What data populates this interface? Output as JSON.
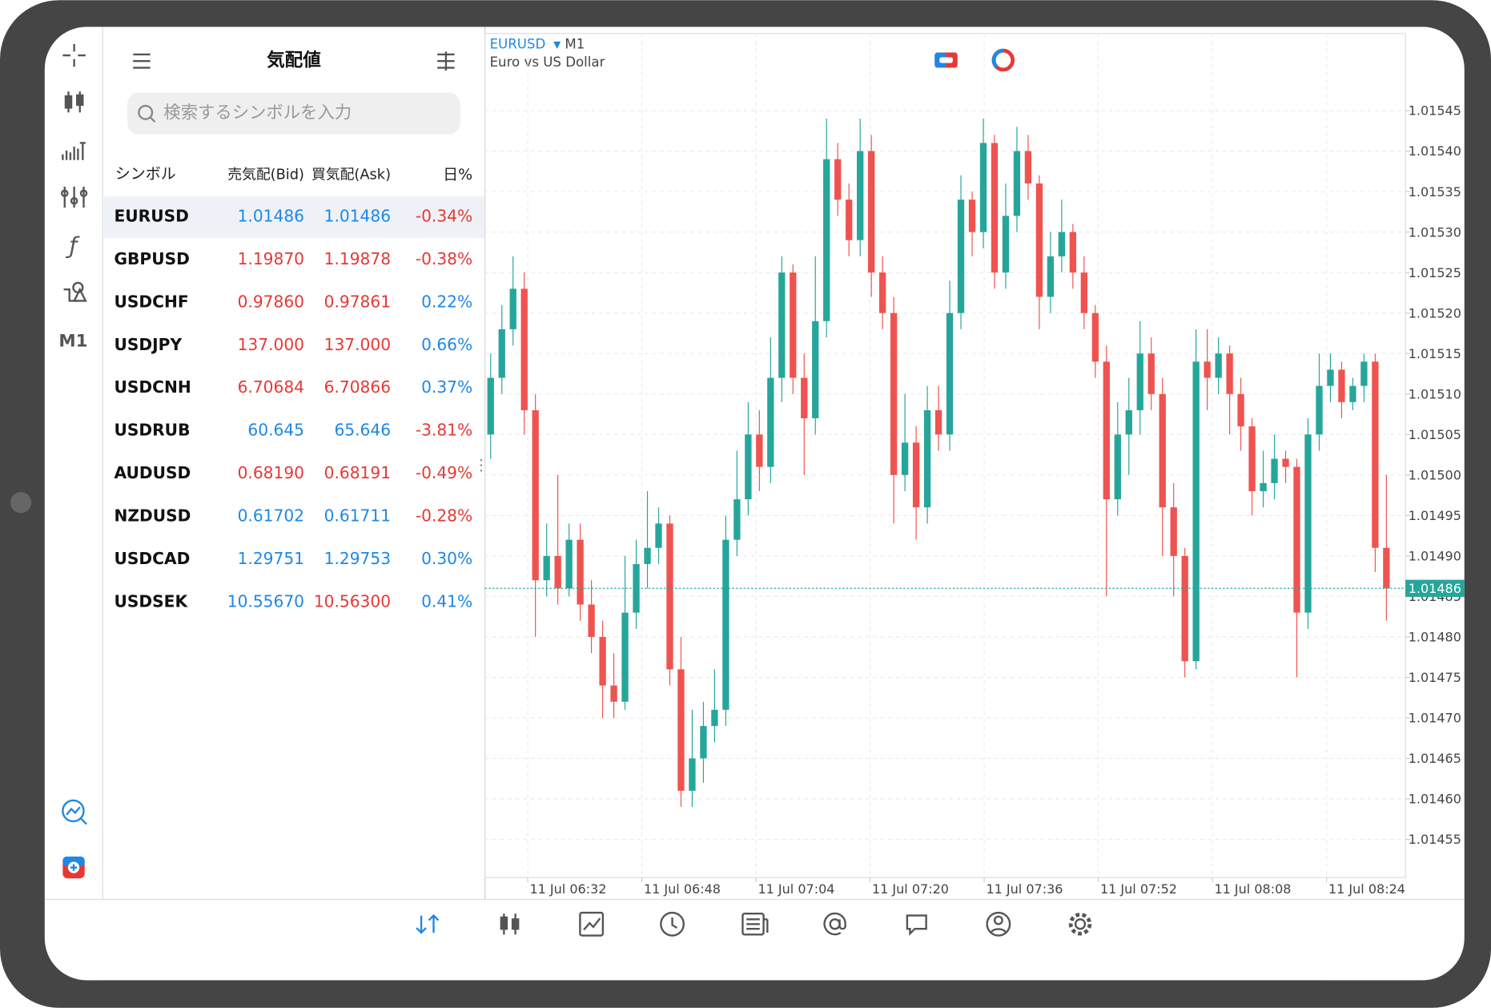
{
  "quotes": {
    "title": "気配値",
    "search_placeholder": "検索するシンボルを入力",
    "columns": [
      "シンボル",
      "売気配(Bid)",
      "買気配(Ask)",
      "日%"
    ],
    "rows": [
      {
        "symbol": "EURUSD",
        "bid": "1.01486",
        "ask": "1.01486",
        "change": "-0.34%",
        "bid_color": "#1e88e5",
        "ask_color": "#1e88e5",
        "change_color": "#e53935"
      },
      {
        "symbol": "GBPUSD",
        "bid": "1.19870",
        "ask": "1.19878",
        "change": "-0.38%",
        "bid_color": "#e53935",
        "ask_color": "#e53935",
        "change_color": "#e53935"
      },
      {
        "symbol": "USDCHF",
        "bid": "0.97860",
        "ask": "0.97861",
        "change": "0.22%",
        "bid_color": "#e53935",
        "ask_color": "#e53935",
        "change_color": "#1e88e5"
      },
      {
        "symbol": "USDJPY",
        "bid": "137.000",
        "ask": "137.000",
        "change": "0.66%",
        "bid_color": "#e53935",
        "ask_color": "#e53935",
        "change_color": "#1e88e5"
      },
      {
        "symbol": "USDCNH",
        "bid": "6.70684",
        "ask": "6.70866",
        "change": "0.37%",
        "bid_color": "#e53935",
        "ask_color": "#e53935",
        "change_color": "#1e88e5"
      },
      {
        "symbol": "USDRUB",
        "bid": "60.645",
        "ask": "65.646",
        "change": "-3.81%",
        "bid_color": "#1e88e5",
        "ask_color": "#1e88e5",
        "change_color": "#e53935"
      },
      {
        "symbol": "AUDUSD",
        "bid": "0.68190",
        "ask": "0.68191",
        "change": "-0.49%",
        "bid_color": "#e53935",
        "ask_color": "#e53935",
        "change_color": "#e53935"
      },
      {
        "symbol": "NZDUSD",
        "bid": "0.61702",
        "ask": "0.61711",
        "change": "-0.28%",
        "bid_color": "#1e88e5",
        "ask_color": "#1e88e5",
        "change_color": "#e53935"
      },
      {
        "symbol": "USDCAD",
        "bid": "1.29751",
        "ask": "1.29753",
        "change": "0.30%",
        "bid_color": "#1e88e5",
        "ask_color": "#1e88e5",
        "change_color": "#1e88e5"
      },
      {
        "symbol": "USDSEK",
        "bid": "10.55670",
        "ask": "10.56300",
        "change": "0.41%",
        "bid_color": "#1e88e5",
        "ask_color": "#e53935",
        "change_color": "#1e88e5"
      }
    ]
  },
  "chart_data": {
    "type": "candlestick",
    "symbol": "EURUSD",
    "timeframe": "M1",
    "description": "Euro vs US Dollar",
    "up_color": "#26a69a",
    "down_color": "#ef5350",
    "grid": true,
    "open": [
      1.01505,
      1.01512,
      1.01518,
      1.01523,
      1.01508,
      1.01487,
      1.0149,
      1.01486,
      1.01492,
      1.01484,
      1.0148,
      1.01474,
      1.01472,
      1.01483,
      1.01489,
      1.01491,
      1.01494,
      1.01476,
      1.01461,
      1.01465,
      1.01469,
      1.01471,
      1.01492,
      1.01497,
      1.01505,
      1.01501,
      1.01512,
      1.01525,
      1.01512,
      1.01507,
      1.01519,
      1.01539,
      1.01534,
      1.01529,
      1.0154,
      1.01525,
      1.0152,
      1.015,
      1.01504,
      1.01496,
      1.01508,
      1.01505,
      1.0152,
      1.01534,
      1.0153,
      1.01541,
      1.01525,
      1.01532,
      1.0154,
      1.01536,
      1.01522,
      1.01527,
      1.0153,
      1.01525,
      1.0152,
      1.01514,
      1.01497,
      1.01505,
      1.01508,
      1.01515,
      1.0151,
      1.01496,
      1.0149,
      1.01477,
      1.01514,
      1.01512,
      1.01515,
      1.0151,
      1.01506,
      1.01498,
      1.01499,
      1.01502,
      1.01501,
      1.01483,
      1.01505,
      1.01511,
      1.01513,
      1.01509,
      1.01511,
      1.01514,
      1.01491
    ],
    "high": [
      1.01515,
      1.01521,
      1.01527,
      1.01525,
      1.0151,
      1.01494,
      1.015,
      1.01494,
      1.01494,
      1.01487,
      1.01482,
      1.01478,
      1.0149,
      1.01492,
      1.01498,
      1.01496,
      1.01495,
      1.0148,
      1.01471,
      1.01472,
      1.01476,
      1.01495,
      1.01503,
      1.01509,
      1.01508,
      1.01517,
      1.01527,
      1.01526,
      1.01515,
      1.01527,
      1.01544,
      1.01541,
      1.01536,
      1.01544,
      1.01542,
      1.01527,
      1.01522,
      1.0151,
      1.01506,
      1.01511,
      1.01511,
      1.01524,
      1.01537,
      1.01535,
      1.01544,
      1.01542,
      1.01536,
      1.01543,
      1.01542,
      1.01537,
      1.0153,
      1.01534,
      1.01531,
      1.01527,
      1.01521,
      1.01516,
      1.01509,
      1.01512,
      1.01519,
      1.01517,
      1.01512,
      1.01499,
      1.01491,
      1.01518,
      1.01518,
      1.01517,
      1.01516,
      1.01512,
      1.01507,
      1.01503,
      1.01505,
      1.01503,
      1.01502,
      1.01507,
      1.01515,
      1.01515,
      1.01514,
      1.01512,
      1.01515,
      1.01515,
      1.015
    ],
    "low": [
      1.01502,
      1.0151,
      1.01516,
      1.01505,
      1.0148,
      1.01485,
      1.01484,
      1.01485,
      1.01482,
      1.01478,
      1.0147,
      1.0147,
      1.01471,
      1.01481,
      1.01486,
      1.01489,
      1.01474,
      1.01459,
      1.01459,
      1.01462,
      1.01467,
      1.01469,
      1.0149,
      1.01495,
      1.01498,
      1.01499,
      1.01509,
      1.0151,
      1.015,
      1.01505,
      1.01517,
      1.01532,
      1.01527,
      1.01527,
      1.01522,
      1.01518,
      1.01494,
      1.01498,
      1.01492,
      1.01494,
      1.01503,
      1.01503,
      1.01518,
      1.01527,
      1.01528,
      1.01523,
      1.01523,
      1.0153,
      1.01534,
      1.01518,
      1.0152,
      1.01525,
      1.01523,
      1.01518,
      1.01512,
      1.01485,
      1.01495,
      1.015,
      1.01505,
      1.01508,
      1.0149,
      1.01485,
      1.01475,
      1.01476,
      1.01508,
      1.0151,
      1.01505,
      1.01503,
      1.01495,
      1.01496,
      1.01497,
      1.01499,
      1.01475,
      1.01481,
      1.01503,
      1.01509,
      1.01507,
      1.01508,
      1.01509,
      1.01488,
      1.01482
    ],
    "close": [
      1.01512,
      1.01518,
      1.01523,
      1.01508,
      1.01487,
      1.0149,
      1.01486,
      1.01492,
      1.01484,
      1.0148,
      1.01474,
      1.01472,
      1.01483,
      1.01489,
      1.01491,
      1.01494,
      1.01476,
      1.01461,
      1.01465,
      1.01469,
      1.01471,
      1.01492,
      1.01497,
      1.01505,
      1.01501,
      1.01512,
      1.01525,
      1.01512,
      1.01507,
      1.01519,
      1.01539,
      1.01534,
      1.01529,
      1.0154,
      1.01525,
      1.0152,
      1.015,
      1.01504,
      1.01496,
      1.01508,
      1.01505,
      1.0152,
      1.01534,
      1.0153,
      1.01541,
      1.01525,
      1.01532,
      1.0154,
      1.01536,
      1.01522,
      1.01527,
      1.0153,
      1.01525,
      1.0152,
      1.01514,
      1.01497,
      1.01505,
      1.01508,
      1.01515,
      1.0151,
      1.01496,
      1.0149,
      1.01477,
      1.01514,
      1.01512,
      1.01515,
      1.0151,
      1.01506,
      1.01498,
      1.01499,
      1.01502,
      1.01501,
      1.01483,
      1.01505,
      1.01511,
      1.01513,
      1.01509,
      1.01511,
      1.01514,
      1.01491,
      1.01486
    ],
    "ylim": [
      1.0145,
      1.0155
    ],
    "yticks": [
      {
        "value": 1.01455,
        "label": "1.01455"
      },
      {
        "value": 1.0146,
        "label": "1.01460"
      },
      1.01465,
      {
        "value": 1.0147,
        "label": "1.01470"
      },
      1.01475,
      {
        "value": 1.0148,
        "label": "1.01480"
      },
      1.01485,
      {
        "value": 1.0149,
        "label": "1.01490"
      },
      1.01495,
      {
        "value": 1.015,
        "label": "1.01500"
      },
      1.01505,
      {
        "value": 1.0151,
        "label": "1.01510"
      },
      1.01515,
      {
        "value": 1.0152,
        "label": "1.01520"
      },
      1.01525,
      {
        "value": 1.0153,
        "label": "1.01530"
      },
      1.01535,
      {
        "value": 1.0154,
        "label": "1.01540"
      },
      1.01545
    ],
    "time_labels": [
      "11 Jul 06:32",
      "11 Jul 06:48",
      "11 Jul 07:04",
      "11 Jul 07:20",
      "11 Jul 07:36",
      "11 Jul 07:52",
      "11 Jul 08:08",
      "11 Jul 08:24"
    ],
    "current_price": 1.01486
  }
}
